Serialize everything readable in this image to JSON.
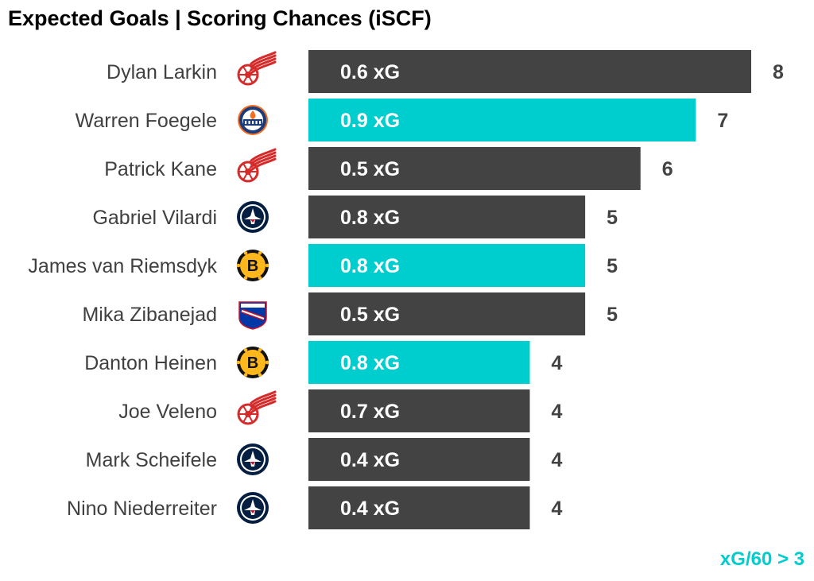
{
  "chart_data": {
    "type": "bar",
    "orientation": "horizontal",
    "title": "Expected Goals | Scoring Chances (iSCF)",
    "footnote": "xG/60 > 3",
    "xlim": [
      0,
      8.3
    ],
    "grid": false,
    "categories": [
      "Dylan Larkin",
      "Warren Foegele",
      "Patrick Kane",
      "Gabriel Vilardi",
      "James van Riemsdyk",
      "Mika Zibanejad",
      "Danton Heinen",
      "Joe Veleno",
      "Mark Scheifele",
      "Nino Niederreiter"
    ],
    "teams": [
      "red-wings-logo",
      "oilers-logo",
      "red-wings-logo",
      "jets-logo",
      "bruins-logo",
      "rangers-logo",
      "bruins-logo",
      "red-wings-logo",
      "jets-logo",
      "jets-logo"
    ],
    "values": [
      8,
      7,
      6,
      5,
      5,
      5,
      4,
      4,
      4,
      4
    ],
    "xg_labels": [
      "0.6 xG",
      "0.9 xG",
      "0.5 xG",
      "0.8 xG",
      "0.8 xG",
      "0.5 xG",
      "0.8 xG",
      "0.7 xG",
      "0.4 xG",
      "0.4 xG"
    ],
    "highlight": [
      false,
      true,
      false,
      false,
      true,
      false,
      true,
      false,
      false,
      false
    ],
    "colors": {
      "bar": "#434343",
      "highlight": "#00CDCD",
      "bar_text": "#ffffff",
      "value_text": "#434343",
      "label_text": "#404040",
      "footnote": "#00CDCD"
    }
  }
}
